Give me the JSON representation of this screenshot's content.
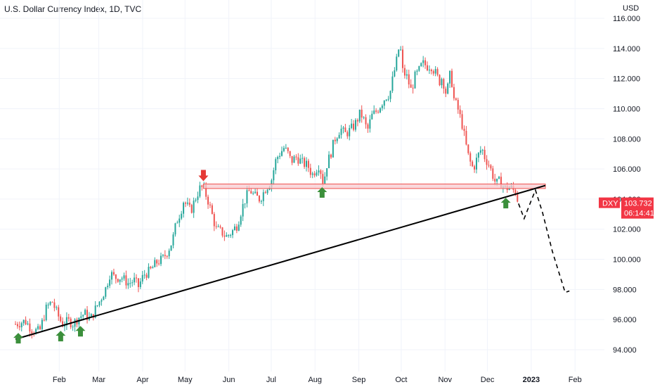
{
  "chart_data": {
    "type": "candlestick",
    "title": "U.S. Dollar Currency Index, 1D, TVC",
    "ylabel": "USD",
    "ylim": [
      93,
      117
    ],
    "y_ticks": [
      "116.000",
      "114.000",
      "112.000",
      "110.000",
      "108.000",
      "106.000",
      "104.000",
      "102.000",
      "100.000",
      "98.000",
      "96.000",
      "94.000"
    ],
    "y_tick_values": [
      116,
      114,
      112,
      110,
      108,
      106,
      104,
      102,
      100,
      98,
      96,
      94
    ],
    "x_ticks": [
      {
        "label": "Feb",
        "day": 31,
        "bold": false
      },
      {
        "label": "Mar",
        "day": 59,
        "bold": false
      },
      {
        "label": "Apr",
        "day": 90,
        "bold": false
      },
      {
        "label": "May",
        "day": 120,
        "bold": false
      },
      {
        "label": "Jun",
        "day": 151,
        "bold": false
      },
      {
        "label": "Jul",
        "day": 181,
        "bold": false
      },
      {
        "label": "Aug",
        "day": 212,
        "bold": false
      },
      {
        "label": "Sep",
        "day": 243,
        "bold": false
      },
      {
        "label": "Oct",
        "day": 273,
        "bold": false
      },
      {
        "label": "Nov",
        "day": 304,
        "bold": false
      },
      {
        "label": "Dec",
        "day": 334,
        "bold": false
      },
      {
        "label": "2023",
        "day": 365,
        "bold": true
      },
      {
        "label": "Feb",
        "day": 396,
        "bold": false
      }
    ],
    "xlim_days": [
      0,
      400
    ],
    "close_path": [
      [
        0,
        95.7
      ],
      [
        7,
        95.9
      ],
      [
        12,
        95.3
      ],
      [
        17,
        95.2
      ],
      [
        22,
        96.8
      ],
      [
        26,
        97.2
      ],
      [
        29,
        96.5
      ],
      [
        33,
        95.7
      ],
      [
        38,
        95.9
      ],
      [
        41,
        95.7
      ],
      [
        44,
        96.1
      ],
      [
        49,
        96.4
      ],
      [
        53,
        96.0
      ],
      [
        56,
        96.6
      ],
      [
        60,
        97.3
      ],
      [
        64,
        98.1
      ],
      [
        67,
        99.1
      ],
      [
        70,
        98.8
      ],
      [
        75,
        98.8
      ],
      [
        80,
        98.4
      ],
      [
        84,
        98.6
      ],
      [
        87,
        98.2
      ],
      [
        91,
        99.0
      ],
      [
        95,
        99.2
      ],
      [
        100,
        99.8
      ],
      [
        104,
        100.0
      ],
      [
        108,
        100.6
      ],
      [
        111,
        101.2
      ],
      [
        114,
        102.5
      ],
      [
        117,
        103.2
      ],
      [
        119,
        103.9
      ],
      [
        121,
        103.6
      ],
      [
        124,
        103.2
      ],
      [
        126,
        103.7
      ],
      [
        128,
        104.2
      ],
      [
        131,
        104.8
      ],
      [
        133,
        104.7
      ],
      [
        136,
        104.0
      ],
      [
        139,
        103.0
      ],
      [
        142,
        102.0
      ],
      [
        146,
        101.8
      ],
      [
        149,
        101.5
      ],
      [
        153,
        101.8
      ],
      [
        157,
        102.3
      ],
      [
        160,
        103.3
      ],
      [
        163,
        104.1
      ],
      [
        166,
        104.6
      ],
      [
        169,
        104.2
      ],
      [
        173,
        104.0
      ],
      [
        177,
        104.7
      ],
      [
        181,
        105.2
      ],
      [
        184,
        106.5
      ],
      [
        186,
        106.9
      ],
      [
        190,
        107.4
      ],
      [
        193,
        107.0
      ],
      [
        195,
        106.5
      ],
      [
        199,
        106.8
      ],
      [
        203,
        106.4
      ],
      [
        207,
        106.2
      ],
      [
        210,
        105.6
      ],
      [
        212,
        105.9
      ],
      [
        215,
        106.3
      ],
      [
        218,
        105.0
      ],
      [
        220,
        106.2
      ],
      [
        223,
        107.0
      ],
      [
        226,
        108.0
      ],
      [
        230,
        108.7
      ],
      [
        233,
        108.3
      ],
      [
        236,
        108.5
      ],
      [
        240,
        108.9
      ],
      [
        244,
        109.7
      ],
      [
        246,
        109.4
      ],
      [
        249,
        108.5
      ],
      [
        252,
        109.5
      ],
      [
        256,
        109.9
      ],
      [
        258,
        110.2
      ],
      [
        262,
        110.8
      ],
      [
        265,
        111.0
      ],
      [
        267,
        112.0
      ],
      [
        270,
        113.3
      ],
      [
        272,
        114.4
      ],
      [
        274,
        112.5
      ],
      [
        277,
        112.1
      ],
      [
        280,
        111.2
      ],
      [
        283,
        112.2
      ],
      [
        285,
        112.4
      ],
      [
        288,
        113.0
      ],
      [
        292,
        112.8
      ],
      [
        294,
        112.9
      ],
      [
        297,
        112.4
      ],
      [
        300,
        111.8
      ],
      [
        302,
        112.1
      ],
      [
        305,
        110.9
      ],
      [
        308,
        112.5
      ],
      [
        310,
        110.7
      ],
      [
        313,
        110.0
      ],
      [
        316,
        109.0
      ],
      [
        320,
        107.0
      ],
      [
        322,
        106.4
      ],
      [
        324,
        106.0
      ],
      [
        327,
        106.8
      ],
      [
        330,
        107.4
      ],
      [
        332,
        106.8
      ],
      [
        335,
        106.3
      ],
      [
        337,
        105.8
      ],
      [
        340,
        105.0
      ],
      [
        343,
        105.2
      ],
      [
        346,
        104.7
      ],
      [
        350,
        104.8
      ],
      [
        352,
        104.6
      ],
      [
        354,
        104.5
      ],
      [
        356,
        103.7
      ]
    ],
    "resistance_level": {
      "low": 104.7,
      "high": 105.0,
      "from_day": 133,
      "to_day": 375
    },
    "trendline": {
      "from": [
        0,
        94.7
      ],
      "to": [
        375,
        104.9
      ]
    },
    "projection": [
      [
        356,
        103.7
      ],
      [
        360,
        102.7
      ],
      [
        365,
        103.9
      ],
      [
        368,
        104.6
      ],
      [
        373,
        103.1
      ],
      [
        380,
        100.5
      ],
      [
        389,
        97.8
      ],
      [
        392,
        97.9
      ]
    ],
    "markers": {
      "up_days": [
        2,
        32,
        46,
        217,
        347
      ],
      "down_days": [
        133
      ]
    },
    "last_price": {
      "symbol": "DXY",
      "price": "103.732",
      "countdown": "06:14:41",
      "value": 103.732
    }
  },
  "colors": {
    "bull": "#26a69a",
    "bear": "#ef5350",
    "up_arrow": "#3b8f3b",
    "down_arrow": "#e53935",
    "zone_fill": "#f8c9cf",
    "zone_border": "#ef5350",
    "badge": "#f23645",
    "grid": "#f0f3fa",
    "line": "#000000"
  }
}
